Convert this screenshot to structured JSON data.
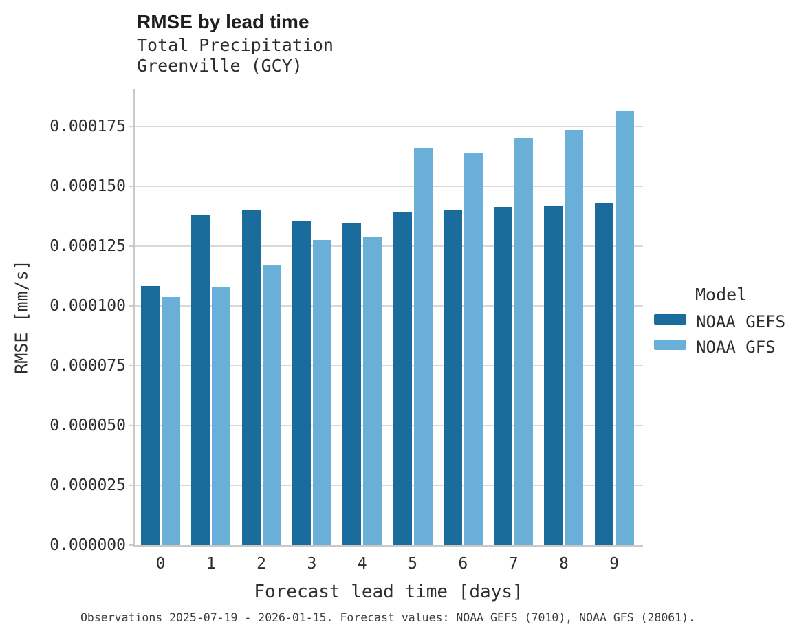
{
  "chart_data": {
    "type": "bar",
    "title": "RMSE by lead time",
    "subtitle_line1": "Total Precipitation",
    "subtitle_line2": "Greenville (GCY)",
    "xlabel": "Forecast lead time [days]",
    "ylabel": "RMSE [mm/s]",
    "legend_title": "Model",
    "legend_position": "right",
    "grid": true,
    "caption": "Observations 2025-07-19 - 2026-01-15. Forecast values: NOAA GEFS (7010), NOAA GFS (28061).",
    "categories": [
      "0",
      "1",
      "2",
      "3",
      "4",
      "5",
      "6",
      "7",
      "8",
      "9"
    ],
    "series": [
      {
        "name": "NOAA GEFS",
        "color": "#1a6c9c",
        "values": [
          0.0001083,
          0.000138,
          0.0001398,
          0.0001356,
          0.0001349,
          0.000139,
          0.0001401,
          0.0001413,
          0.0001416,
          0.0001431
        ]
      },
      {
        "name": "NOAA GFS",
        "color": "#69afd8",
        "values": [
          0.0001037,
          0.0001081,
          0.0001172,
          0.0001276,
          0.0001287,
          0.000166,
          0.0001637,
          0.0001701,
          0.0001736,
          0.0001813
        ]
      }
    ],
    "ylim": [
      0,
      0.0001908
    ],
    "yticks": [
      {
        "value": 0.0,
        "label": "0.000000"
      },
      {
        "value": 2.5e-05,
        "label": "0.000025"
      },
      {
        "value": 5e-05,
        "label": "0.000050"
      },
      {
        "value": 7.5e-05,
        "label": "0.000075"
      },
      {
        "value": 0.0001,
        "label": "0.000100"
      },
      {
        "value": 0.000125,
        "label": "0.000125"
      },
      {
        "value": 0.00015,
        "label": "0.000150"
      },
      {
        "value": 0.000175,
        "label": "0.000175"
      }
    ]
  },
  "colors": {
    "grid": "#d9d9d9",
    "spine": "#c9c9c9",
    "title_text": "#1f1f1f",
    "text": "#2e2e2e"
  }
}
